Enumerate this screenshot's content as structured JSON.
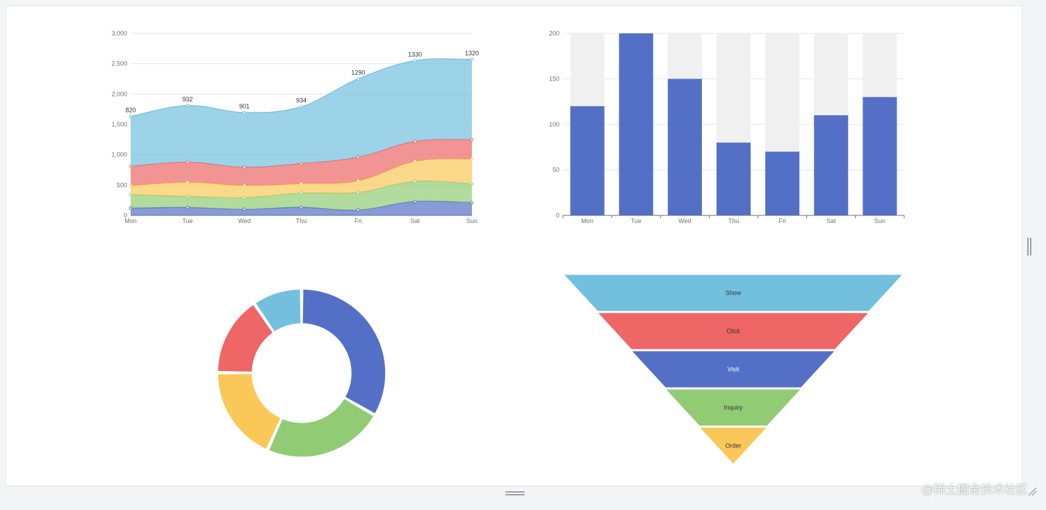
{
  "watermark": "@稀土掘金技术社区",
  "chart_data": [
    {
      "type": "area",
      "stacked": true,
      "smooth": true,
      "categories": [
        "Mon",
        "Tue",
        "Wed",
        "Thu",
        "Fri",
        "Sat",
        "Sun"
      ],
      "ylim": [
        0,
        3000
      ],
      "yticks": [
        0,
        500,
        1000,
        1500,
        2000,
        2500,
        3000
      ],
      "grid": true,
      "series": [
        {
          "values": [
            120,
            132,
            101,
            134,
            90,
            230,
            210
          ],
          "color": "#5470c6"
        },
        {
          "values": [
            220,
            182,
            191,
            234,
            290,
            330,
            310
          ],
          "color": "#91cc75"
        },
        {
          "values": [
            150,
            232,
            201,
            154,
            190,
            330,
            410
          ],
          "color": "#fac858"
        },
        {
          "values": [
            320,
            332,
            301,
            334,
            390,
            330,
            320
          ],
          "color": "#ee6666"
        },
        {
          "values": [
            820,
            932,
            901,
            934,
            1290,
            1330,
            1320
          ],
          "color": "#73c0de",
          "labels": [
            "820",
            "932",
            "901",
            "934",
            "1290",
            "1330",
            "1320"
          ]
        }
      ]
    },
    {
      "type": "bar",
      "categories": [
        "Mon",
        "Tue",
        "Wed",
        "Thu",
        "Fri",
        "Sat",
        "Sun"
      ],
      "values": [
        120,
        200,
        150,
        80,
        70,
        110,
        130
      ],
      "ylim": [
        0,
        200
      ],
      "yticks": [
        0,
        50,
        100,
        150,
        200
      ],
      "show_background": true,
      "color": "#5470c6",
      "background_color": "#f0f0f0"
    },
    {
      "type": "pie",
      "donut": true,
      "slices": [
        {
          "value": 1048,
          "color": "#5470c6"
        },
        {
          "value": 735,
          "color": "#91cc75"
        },
        {
          "value": 580,
          "color": "#fac858"
        },
        {
          "value": 484,
          "color": "#ee6666"
        },
        {
          "value": 300,
          "color": "#73c0de"
        }
      ]
    },
    {
      "type": "funnel",
      "sort": "descending",
      "stages": [
        {
          "name": "Show",
          "value": 100,
          "color": "#73c0de"
        },
        {
          "name": "Click",
          "value": 80,
          "color": "#ee6666"
        },
        {
          "name": "Visit",
          "value": 60,
          "color": "#5470c6"
        },
        {
          "name": "Inquiry",
          "value": 40,
          "color": "#91cc75"
        },
        {
          "name": "Order",
          "value": 20,
          "color": "#fac858"
        }
      ]
    }
  ]
}
